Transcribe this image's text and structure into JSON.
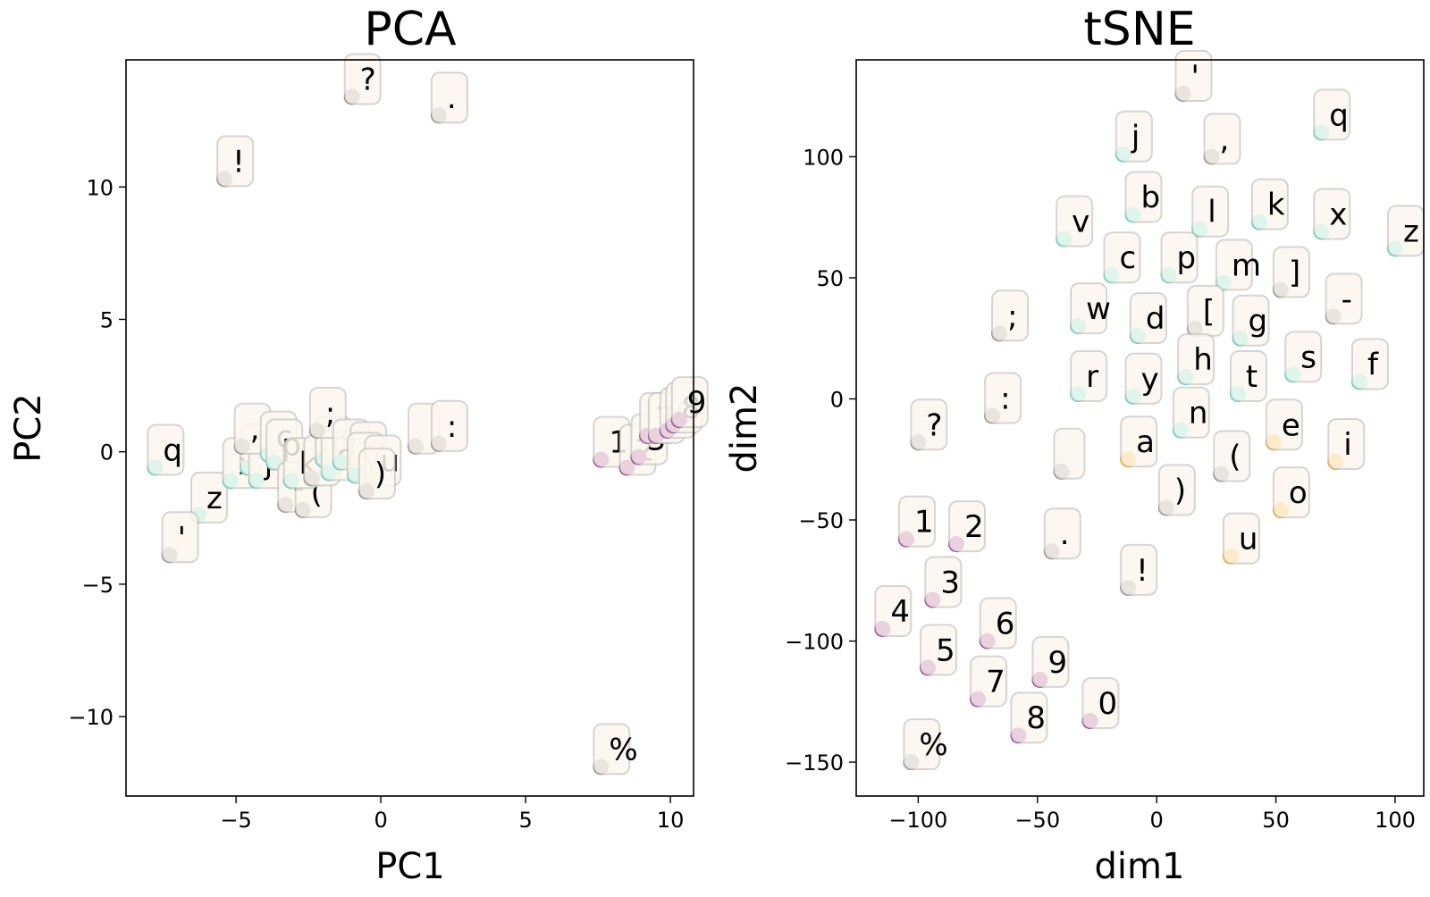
{
  "colors": {
    "letter": "#40E0D0",
    "vowel": "#FFA500",
    "digit": "#800080",
    "punct": "#808080"
  },
  "chart_data": [
    {
      "type": "scatter",
      "title": "PCA",
      "xlabel": "PC1",
      "ylabel": "PC2",
      "xlim": [
        -8.8,
        10.8
      ],
      "ylim": [
        -13,
        14.8
      ],
      "xticks": [
        -5,
        0,
        5,
        10
      ],
      "yticks": [
        -10,
        -5,
        0,
        5,
        10
      ],
      "xtick_labels": [
        "−5",
        "0",
        "5",
        "10"
      ],
      "ytick_labels": [
        "−10",
        "−5",
        "0",
        "5",
        "10"
      ],
      "grid": false,
      "points": [
        {
          "label": "?",
          "x": -1.0,
          "y": 13.4,
          "group": "punct"
        },
        {
          "label": ".",
          "x": 2.0,
          "y": 12.7,
          "group": "punct"
        },
        {
          "label": "!",
          "x": -5.4,
          "y": 10.3,
          "group": "punct"
        },
        {
          "label": "q",
          "x": -7.8,
          "y": -0.6,
          "group": "letter"
        },
        {
          "label": "z",
          "x": -6.3,
          "y": -2.4,
          "group": "letter"
        },
        {
          "label": "'",
          "x": -7.3,
          "y": -3.9,
          "group": "punct"
        },
        {
          "label": "x",
          "x": -5.2,
          "y": -1.1,
          "group": "letter"
        },
        {
          "label": "v",
          "x": -4.6,
          "y": -0.6,
          "group": "letter"
        },
        {
          "label": "j",
          "x": -4.3,
          "y": -1.1,
          "group": "letter"
        },
        {
          "label": ",",
          "x": -4.8,
          "y": 0.2,
          "group": "punct"
        },
        {
          "label": "c",
          "x": -3.9,
          "y": -0.1,
          "group": "letter"
        },
        {
          "label": "p",
          "x": -3.7,
          "y": -0.4,
          "group": "letter"
        },
        {
          "label": "-",
          "x": -3.3,
          "y": -2.0,
          "group": "punct"
        },
        {
          "label": "(",
          "x": -2.7,
          "y": -2.2,
          "group": "punct"
        },
        {
          "label": "k",
          "x": -3.1,
          "y": -1.1,
          "group": "letter"
        },
        {
          "label": "[",
          "x": -2.4,
          "y": -1.0,
          "group": "punct"
        },
        {
          "label": "b",
          "x": -2.0,
          "y": -0.3,
          "group": "letter"
        },
        {
          "label": "d",
          "x": -1.8,
          "y": -0.8,
          "group": "letter"
        },
        {
          "label": ";",
          "x": -2.2,
          "y": 0.8,
          "group": "punct"
        },
        {
          "label": "r",
          "x": -1.4,
          "y": -0.4,
          "group": "letter"
        },
        {
          "label": "e",
          "x": -0.8,
          "y": -0.5,
          "group": "vowel"
        },
        {
          "label": "y",
          "x": -0.9,
          "y": -0.9,
          "group": "letter"
        },
        {
          "label": "u",
          "x": -0.3,
          "y": -1.0,
          "group": "vowel"
        },
        {
          "label": ")",
          "x": -0.5,
          "y": -1.5,
          "group": "punct"
        },
        {
          "label": "",
          "x": 1.2,
          "y": 0.2,
          "group": "punct"
        },
        {
          "label": ":",
          "x": 2.0,
          "y": 0.3,
          "group": "punct"
        },
        {
          "label": "1",
          "x": 7.6,
          "y": -0.3,
          "group": "digit"
        },
        {
          "label": "2",
          "x": 8.5,
          "y": -0.6,
          "group": "digit"
        },
        {
          "label": "3",
          "x": 8.9,
          "y": -0.2,
          "group": "digit"
        },
        {
          "label": "7",
          "x": 9.2,
          "y": 0.6,
          "group": "digit"
        },
        {
          "label": "5",
          "x": 9.5,
          "y": 0.6,
          "group": "digit"
        },
        {
          "label": "0",
          "x": 9.9,
          "y": 0.8,
          "group": "digit"
        },
        {
          "label": "8",
          "x": 10.1,
          "y": 1.0,
          "group": "digit"
        },
        {
          "label": "9",
          "x": 10.3,
          "y": 1.2,
          "group": "digit"
        },
        {
          "label": "%",
          "x": 7.6,
          "y": -11.9,
          "group": "punct"
        }
      ]
    },
    {
      "type": "scatter",
      "title": "tSNE",
      "xlabel": "dim1",
      "ylabel": "dim2",
      "xlim": [
        -126,
        112
      ],
      "ylim": [
        -164,
        140
      ],
      "xticks": [
        -100,
        -50,
        0,
        50,
        100
      ],
      "yticks": [
        -150,
        -100,
        -50,
        0,
        50,
        100
      ],
      "xtick_labels": [
        "−100",
        "−50",
        "0",
        "50",
        "100"
      ],
      "ytick_labels": [
        "−150",
        "−100",
        "−50",
        "0",
        "50",
        "100"
      ],
      "grid": false,
      "points": [
        {
          "label": "'",
          "x": 11,
          "y": 126,
          "group": "punct"
        },
        {
          "label": "q",
          "x": 69,
          "y": 110,
          "group": "letter"
        },
        {
          "label": "j",
          "x": -14,
          "y": 101,
          "group": "letter"
        },
        {
          "label": ",",
          "x": 23,
          "y": 100,
          "group": "punct"
        },
        {
          "label": "b",
          "x": -10,
          "y": 76,
          "group": "letter"
        },
        {
          "label": "l",
          "x": 18,
          "y": 70,
          "group": "letter"
        },
        {
          "label": "k",
          "x": 43,
          "y": 73,
          "group": "letter"
        },
        {
          "label": "x",
          "x": 69,
          "y": 69,
          "group": "letter"
        },
        {
          "label": "z",
          "x": 100,
          "y": 62,
          "group": "letter"
        },
        {
          "label": "v",
          "x": -39,
          "y": 66,
          "group": "letter"
        },
        {
          "label": "c",
          "x": -19,
          "y": 51,
          "group": "letter"
        },
        {
          "label": "p",
          "x": 5,
          "y": 51,
          "group": "letter"
        },
        {
          "label": "m",
          "x": 28,
          "y": 48,
          "group": "letter"
        },
        {
          "label": "]",
          "x": 52,
          "y": 45,
          "group": "punct"
        },
        {
          "label": "-",
          "x": 74,
          "y": 34,
          "group": "punct"
        },
        {
          "label": "w",
          "x": -33,
          "y": 30,
          "group": "letter"
        },
        {
          "label": "d",
          "x": -8,
          "y": 26,
          "group": "letter"
        },
        {
          "label": "[",
          "x": 16,
          "y": 29,
          "group": "punct"
        },
        {
          "label": "g",
          "x": 35,
          "y": 25,
          "group": "letter"
        },
        {
          "label": ";",
          "x": -66,
          "y": 27,
          "group": "punct"
        },
        {
          "label": "h",
          "x": 12,
          "y": 9,
          "group": "letter"
        },
        {
          "label": "s",
          "x": 57,
          "y": 10,
          "group": "letter"
        },
        {
          "label": "f",
          "x": 85,
          "y": 7,
          "group": "letter"
        },
        {
          "label": "r",
          "x": -33,
          "y": 2,
          "group": "letter"
        },
        {
          "label": "y",
          "x": -10,
          "y": 1,
          "group": "letter"
        },
        {
          "label": "t",
          "x": 34,
          "y": 2,
          "group": "letter"
        },
        {
          "label": ":",
          "x": -69,
          "y": -7,
          "group": "punct"
        },
        {
          "label": "n",
          "x": 10,
          "y": -13,
          "group": "letter"
        },
        {
          "label": "e",
          "x": 49,
          "y": -18,
          "group": "vowel"
        },
        {
          "label": "?",
          "x": -100,
          "y": -18,
          "group": "punct"
        },
        {
          "label": "a",
          "x": -12,
          "y": -25,
          "group": "vowel"
        },
        {
          "label": "i",
          "x": 75,
          "y": -26,
          "group": "vowel"
        },
        {
          "label": "",
          "x": -40,
          "y": -30,
          "group": "punct"
        },
        {
          "label": "(",
          "x": 27,
          "y": -31,
          "group": "punct"
        },
        {
          "label": ")",
          "x": 4,
          "y": -45,
          "group": "punct"
        },
        {
          "label": "o",
          "x": 52,
          "y": -46,
          "group": "vowel"
        },
        {
          "label": "1",
          "x": -105,
          "y": -58,
          "group": "digit"
        },
        {
          "label": "2",
          "x": -84,
          "y": -60,
          "group": "digit"
        },
        {
          "label": ".",
          "x": -44,
          "y": -63,
          "group": "punct"
        },
        {
          "label": "u",
          "x": 31,
          "y": -65,
          "group": "vowel"
        },
        {
          "label": "!",
          "x": -12,
          "y": -78,
          "group": "punct"
        },
        {
          "label": "3",
          "x": -94,
          "y": -83,
          "group": "digit"
        },
        {
          "label": "4",
          "x": -115,
          "y": -95,
          "group": "digit"
        },
        {
          "label": "6",
          "x": -71,
          "y": -100,
          "group": "digit"
        },
        {
          "label": "5",
          "x": -96,
          "y": -111,
          "group": "digit"
        },
        {
          "label": "9",
          "x": -49,
          "y": -116,
          "group": "digit"
        },
        {
          "label": "7",
          "x": -75,
          "y": -124,
          "group": "digit"
        },
        {
          "label": "0",
          "x": -28,
          "y": -133,
          "group": "digit"
        },
        {
          "label": "8",
          "x": -58,
          "y": -139,
          "group": "digit"
        },
        {
          "label": "%",
          "x": -103,
          "y": -150,
          "group": "punct"
        }
      ]
    }
  ]
}
